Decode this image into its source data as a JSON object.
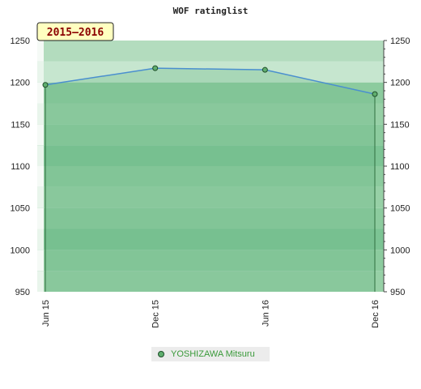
{
  "chart_data": {
    "type": "area",
    "title": "WOF ratinglist",
    "period_badge": "2015–2016",
    "categories": [
      "Jun 15",
      "Dec 15",
      "Jun 16",
      "Dec 16"
    ],
    "series": [
      {
        "name": "YOSHIZAWA Mitsuru",
        "values": [
          1197,
          1217,
          1215,
          1186
        ]
      }
    ],
    "ylim": [
      950,
      1250
    ],
    "yticks": [
      950,
      1000,
      1050,
      1100,
      1150,
      1200,
      1250
    ],
    "y_axis_both_sides": true,
    "legend_position": "bottom-center",
    "colors": {
      "band_dark": "#7cc494",
      "band_light": "#b5dfc0",
      "area_fill": "#6fbb89",
      "line": "#4a8fcf",
      "marker": "#5fae6e",
      "badge_bg": "#ffffc0"
    }
  }
}
